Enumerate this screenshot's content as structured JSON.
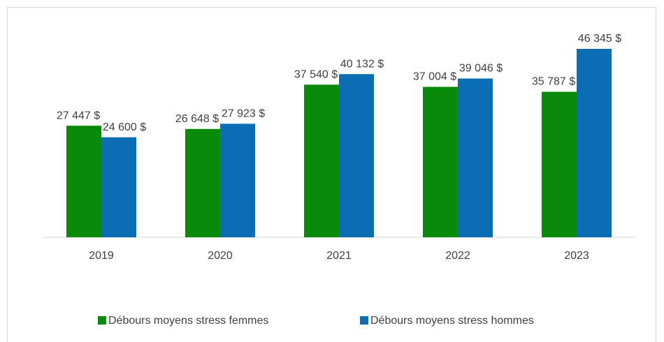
{
  "chart_data": {
    "type": "bar",
    "categories": [
      "2019",
      "2020",
      "2021",
      "2022",
      "2023"
    ],
    "series": [
      {
        "name": "Débours moyens stress femmes",
        "color": "#0a8a0a",
        "values": [
          27447,
          26648,
          37540,
          37004,
          35787
        ],
        "value_labels": [
          "27 447 $",
          "26 648 $",
          "37 540 $",
          "37 004 $",
          "35 787 $"
        ]
      },
      {
        "name": "Débours moyens stress hommes",
        "color": "#0b6db3",
        "values": [
          24600,
          27923,
          40132,
          39046,
          46345
        ],
        "value_labels": [
          "24 600 $",
          "27 923 $",
          "40 132 $",
          "39 046 $",
          "46 345 $"
        ]
      }
    ],
    "legend": "bottom"
  }
}
